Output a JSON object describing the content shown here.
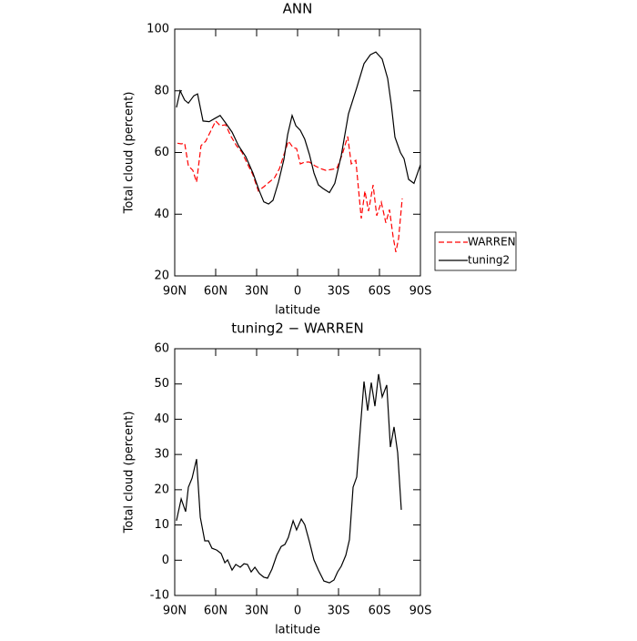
{
  "chart_data": [
    {
      "type": "line",
      "title": "ANN",
      "xlabel": "latitude",
      "ylabel": "Total cloud (percent)",
      "xlim": [
        90,
        -90
      ],
      "ylim": [
        20,
        100
      ],
      "xticks": [
        {
          "value": 90,
          "label": "90N"
        },
        {
          "value": 60,
          "label": "60N"
        },
        {
          "value": 30,
          "label": "30N"
        },
        0,
        {
          "value": -30,
          "label": "30S"
        },
        {
          "value": -60,
          "label": "60S"
        },
        {
          "value": -90,
          "label": "90S"
        }
      ],
      "yticks": [
        20,
        40,
        60,
        80,
        100
      ],
      "legend_position": "right",
      "series": [
        {
          "name": "WARREN",
          "color": "#ff0000",
          "linestyle": "dashed",
          "x": [
            88,
            85.3,
            82.7,
            80,
            76.7,
            74,
            70.7,
            67.3,
            64,
            60,
            56.7,
            52.7,
            48.7,
            44.7,
            40.7,
            36.7,
            32.7,
            28.7,
            24.7,
            20.7,
            16.7,
            13.3,
            10,
            6.7,
            3.3,
            0.7,
            -2,
            -5.3,
            -8.7,
            -12.7,
            -16.7,
            -20.7,
            -24.7,
            -28.7,
            -32.7,
            -36.7,
            -39.3,
            -42.7,
            -46.7,
            -49.3,
            -52,
            -55.3,
            -58,
            -61.3,
            -64.7,
            -67.3,
            -70,
            -72,
            -74,
            -76.7
          ],
          "values": [
            63,
            62.8,
            63,
            55.7,
            54.2,
            50.4,
            62.2,
            63.7,
            66.6,
            70.2,
            68.7,
            69,
            65.2,
            62.2,
            60.1,
            56.3,
            52.8,
            47.5,
            48.9,
            50.4,
            51.9,
            54.8,
            59.3,
            63.7,
            61.6,
            61.3,
            56.3,
            56.9,
            56.9,
            55.7,
            54.8,
            54.2,
            54.5,
            54.8,
            59.3,
            65.2,
            56.3,
            57.5,
            38.6,
            47.5,
            41,
            49.5,
            39.5,
            43.9,
            37.2,
            41.5,
            32.7,
            27.7,
            32.1,
            45.1
          ]
        },
        {
          "name": "tuning2",
          "color": "#000000",
          "linestyle": "solid",
          "x": [
            88.7,
            86,
            82.7,
            80,
            76,
            73.3,
            69.3,
            64.7,
            60.7,
            56.7,
            52.7,
            48,
            43.3,
            38,
            32.7,
            28,
            24.7,
            21.3,
            18,
            14,
            10,
            7.3,
            4,
            1.3,
            -2,
            -5.3,
            -8.7,
            -12,
            -15.3,
            -18.7,
            -23.3,
            -27.3,
            -32,
            -37.3,
            -43.3,
            -48.7,
            -53.3,
            -57.3,
            -62,
            -66,
            -68.7,
            -71.3,
            -75.3,
            -78,
            -81.3,
            -85.3,
            -90
          ],
          "values": [
            74.6,
            80,
            77,
            76,
            78.4,
            79,
            70.2,
            70,
            71,
            72,
            69.6,
            66.6,
            62.2,
            58.7,
            53.4,
            47.5,
            44,
            43.3,
            44.5,
            50.4,
            57.8,
            65.8,
            72,
            68.7,
            67.2,
            64.3,
            59.3,
            53.4,
            49.5,
            48.3,
            47,
            50,
            59,
            72.5,
            81,
            88.8,
            91.7,
            92.6,
            90.3,
            84,
            75.5,
            65,
            60,
            58,
            51.3,
            50,
            56
          ]
        }
      ]
    },
    {
      "type": "line",
      "title": "tuning2 − WARREN",
      "xlabel": "latitude",
      "ylabel": "Total cloud (percent)",
      "xlim": [
        90,
        -90
      ],
      "ylim": [
        -10,
        60
      ],
      "xticks": [
        {
          "value": 90,
          "label": "90N"
        },
        {
          "value": 60,
          "label": "60N"
        },
        {
          "value": 30,
          "label": "30N"
        },
        0,
        {
          "value": -30,
          "label": "30S"
        },
        {
          "value": -60,
          "label": "60S"
        },
        {
          "value": -90,
          "label": "90S"
        }
      ],
      "yticks": [
        -10,
        0,
        10,
        20,
        30,
        40,
        50,
        60
      ],
      "series": [
        {
          "color": "#000000",
          "linestyle": "solid",
          "x": [
            88.7,
            85.3,
            82,
            80,
            77.3,
            74,
            71.3,
            68,
            65.3,
            62.7,
            59.3,
            56,
            53.3,
            51.3,
            48,
            45.3,
            42,
            39.3,
            36.7,
            34,
            31.3,
            28,
            24.7,
            22,
            18.7,
            15.3,
            12,
            9.3,
            6.7,
            3.3,
            0.7,
            -2.7,
            -5.3,
            -8.7,
            -12,
            -15.3,
            -19.3,
            -23.3,
            -26.7,
            -29.3,
            -32,
            -35.3,
            -38,
            -40.7,
            -43.3,
            -46,
            -48.7,
            -51.3,
            -54,
            -56.7,
            -59.3,
            -62,
            -65.3,
            -68,
            -70.7,
            -73.3,
            -76
          ],
          "values": [
            11.2,
            17.4,
            13.8,
            20.7,
            23.3,
            28.7,
            12.2,
            5.5,
            5.5,
            3.4,
            2.9,
            1.9,
            -0.7,
            0.1,
            -2.8,
            -1.2,
            -2,
            -1,
            -1.2,
            -3.3,
            -2,
            -3.8,
            -4.8,
            -5.1,
            -2.5,
            1.4,
            3.9,
            4.5,
            6.5,
            11.2,
            8.6,
            11.7,
            10.1,
            5.2,
            0.1,
            -2.8,
            -5.9,
            -6.4,
            -5.6,
            -3.3,
            -1.7,
            1.4,
            5.8,
            20.7,
            23.6,
            37.5,
            50.7,
            42.4,
            50.4,
            43.7,
            52.8,
            46.3,
            49.7,
            32.1,
            37.8,
            30.5,
            14.3
          ]
        }
      ]
    }
  ]
}
